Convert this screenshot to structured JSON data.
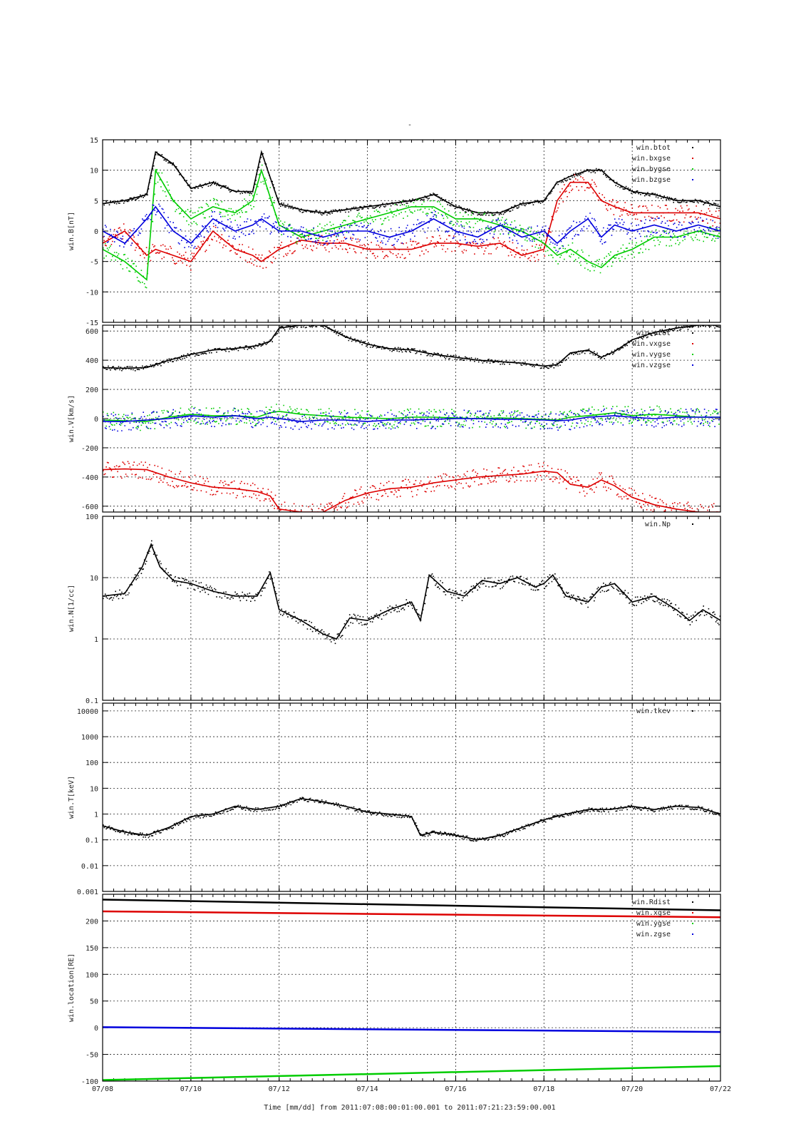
{
  "title": "-",
  "footer": {
    "xlabel": "Time [mm/dd]  from 2011:07:08:00:01:00.001  to  2011:07:21:23:59:00.001"
  },
  "xticks": [
    "07/08",
    "07/10",
    "07/12",
    "07/14",
    "07/16",
    "07/18",
    "07/20",
    "07/22"
  ],
  "colors": {
    "black": "#000000",
    "red": "#dd0000",
    "green": "#00cc00",
    "blue": "#0000dd"
  },
  "chart_data": [
    {
      "type": "scatter",
      "ylabel": "win.B[nT]",
      "ylim": [
        -15,
        15
      ],
      "yticks": [
        15,
        10,
        5,
        0,
        -5,
        -10,
        -15
      ],
      "x": [
        8.0,
        8.5,
        9.0,
        9.2,
        9.6,
        10.0,
        10.5,
        11.0,
        11.4,
        11.6,
        12.0,
        12.5,
        13.0,
        13.5,
        14.0,
        14.5,
        15.0,
        15.5,
        16.0,
        16.5,
        17.0,
        17.5,
        18.0,
        18.3,
        18.6,
        19.0,
        19.3,
        19.6,
        20.0,
        20.5,
        21.0,
        21.5,
        22.0
      ],
      "series": [
        {
          "name": "win.btot",
          "color": "black",
          "values": [
            4.5,
            5.0,
            6.0,
            13.0,
            11.0,
            7.0,
            8.0,
            6.5,
            6.5,
            13.0,
            4.5,
            3.5,
            3.0,
            3.5,
            4.0,
            4.5,
            5.0,
            6.0,
            4.0,
            3.0,
            3.0,
            4.5,
            5.0,
            8.0,
            9.0,
            10.0,
            10.0,
            8.0,
            6.5,
            6.0,
            5.0,
            5.0,
            4.0
          ]
        },
        {
          "name": "win.bxgse",
          "color": "red",
          "values": [
            -2.0,
            0.0,
            -4.0,
            -3.0,
            -4.0,
            -5.0,
            0.0,
            -3.0,
            -4.0,
            -5.0,
            -3.0,
            -1.5,
            -2.0,
            -2.0,
            -3.0,
            -3.0,
            -3.0,
            -2.0,
            -2.0,
            -2.5,
            -2.0,
            -4.0,
            -3.0,
            5.0,
            8.0,
            8.0,
            5.0,
            4.0,
            3.0,
            3.0,
            3.0,
            3.0,
            2.0
          ]
        },
        {
          "name": "win.bygse",
          "color": "green",
          "values": [
            -3.0,
            -5.0,
            -8.0,
            10.0,
            5.0,
            2.0,
            4.0,
            3.0,
            5.0,
            10.0,
            1.0,
            -1.0,
            0.0,
            1.0,
            2.0,
            3.0,
            4.0,
            4.0,
            2.0,
            2.0,
            1.0,
            0.0,
            -2.0,
            -4.0,
            -3.0,
            -5.0,
            -6.0,
            -4.0,
            -3.0,
            -1.0,
            -1.0,
            0.0,
            -1.0
          ]
        },
        {
          "name": "win.bzgse",
          "color": "blue",
          "values": [
            0.0,
            -2.0,
            2.0,
            4.0,
            0.0,
            -2.0,
            2.0,
            0.0,
            1.0,
            2.0,
            0.0,
            0.0,
            -1.0,
            0.0,
            0.0,
            -1.0,
            0.0,
            2.0,
            0.0,
            -1.0,
            1.0,
            -1.0,
            0.0,
            -2.0,
            0.0,
            2.0,
            -1.0,
            1.0,
            0.0,
            1.0,
            0.0,
            1.0,
            0.0
          ]
        }
      ],
      "legend": "top-right",
      "grid": true
    },
    {
      "type": "scatter",
      "ylabel": "win.V[km/s]",
      "ylim": [
        -640,
        640
      ],
      "yticks": [
        600,
        400,
        200,
        0,
        -200,
        -400,
        -600
      ],
      "x": [
        8.0,
        8.5,
        9.0,
        9.5,
        10.0,
        10.5,
        11.0,
        11.5,
        11.8,
        12.0,
        12.5,
        13.0,
        13.5,
        14.0,
        14.5,
        15.0,
        15.5,
        16.0,
        16.5,
        17.0,
        17.5,
        18.0,
        18.3,
        18.6,
        19.0,
        19.3,
        19.6,
        20.0,
        20.5,
        21.0,
        21.5,
        22.0
      ],
      "series": [
        {
          "name": "win.vtot",
          "color": "black",
          "values": [
            350,
            345,
            350,
            400,
            440,
            470,
            480,
            500,
            530,
            620,
            640,
            640,
            560,
            510,
            480,
            470,
            440,
            420,
            400,
            390,
            380,
            360,
            370,
            450,
            470,
            420,
            460,
            540,
            590,
            620,
            640,
            640
          ]
        },
        {
          "name": "win.vxgse",
          "color": "red",
          "values": [
            -350,
            -345,
            -350,
            -400,
            -440,
            -470,
            -480,
            -500,
            -530,
            -620,
            -640,
            -640,
            -560,
            -510,
            -480,
            -470,
            -440,
            -420,
            -400,
            -390,
            -380,
            -360,
            -370,
            -450,
            -470,
            -420,
            -460,
            -540,
            -590,
            -620,
            -640,
            -640
          ]
        },
        {
          "name": "win.vygse",
          "color": "green",
          "values": [
            -10,
            -15,
            -20,
            10,
            30,
            20,
            20,
            10,
            40,
            50,
            30,
            20,
            10,
            5,
            0,
            10,
            10,
            5,
            0,
            5,
            0,
            -5,
            -10,
            10,
            20,
            30,
            40,
            20,
            30,
            20,
            10,
            10
          ]
        },
        {
          "name": "win.vzgse",
          "color": "blue",
          "values": [
            -20,
            -20,
            -10,
            0,
            20,
            10,
            20,
            0,
            10,
            0,
            -20,
            -10,
            -10,
            -20,
            -10,
            -10,
            -5,
            0,
            0,
            -5,
            -5,
            -10,
            -15,
            -10,
            10,
            15,
            20,
            10,
            0,
            10,
            10,
            10
          ]
        }
      ],
      "legend": "top-right",
      "grid": true
    },
    {
      "type": "scatter",
      "ylabel": "win.N[1/cc]",
      "yscale": "log",
      "ylim": [
        0.1,
        100
      ],
      "yticks": [
        100,
        10,
        1,
        0.1
      ],
      "x": [
        8.0,
        8.5,
        8.9,
        9.1,
        9.3,
        9.6,
        10.0,
        10.5,
        11.0,
        11.5,
        11.8,
        12.0,
        12.5,
        13.0,
        13.3,
        13.6,
        14.0,
        14.5,
        15.0,
        15.2,
        15.4,
        15.8,
        16.2,
        16.6,
        17.0,
        17.4,
        17.8,
        18.0,
        18.2,
        18.5,
        19.0,
        19.3,
        19.6,
        20.0,
        20.5,
        21.0,
        21.3,
        21.6,
        22.0
      ],
      "series": [
        {
          "name": "win.Np",
          "color": "black",
          "values": [
            5.0,
            5.5,
            15.0,
            35.0,
            15.0,
            9.0,
            8.0,
            6.0,
            5.0,
            5.0,
            12.0,
            3.0,
            2.0,
            1.2,
            1.0,
            2.2,
            2.0,
            3.0,
            4.0,
            2.0,
            11.0,
            6.0,
            5.0,
            9.0,
            8.0,
            10.0,
            7.0,
            8.0,
            11.0,
            5.0,
            4.0,
            7.0,
            8.0,
            4.0,
            5.0,
            3.0,
            2.0,
            3.0,
            2.0
          ]
        }
      ],
      "legend": "top-right",
      "grid": true
    },
    {
      "type": "scatter",
      "ylabel": "win.T[keV]",
      "yscale": "log",
      "ylim": [
        0.001,
        20000
      ],
      "yticks": [
        10000,
        1000,
        100,
        10,
        1,
        0.1,
        0.01,
        0.001
      ],
      "x": [
        8.0,
        8.5,
        9.0,
        9.5,
        10.0,
        10.5,
        11.0,
        11.5,
        12.0,
        12.5,
        13.0,
        13.5,
        14.0,
        14.5,
        15.0,
        15.2,
        15.5,
        16.0,
        16.5,
        17.0,
        17.5,
        18.0,
        18.5,
        19.0,
        19.5,
        20.0,
        20.5,
        21.0,
        21.5,
        22.0
      ],
      "series": [
        {
          "name": "win.tkev",
          "color": "black",
          "values": [
            0.35,
            0.2,
            0.15,
            0.3,
            0.8,
            1.0,
            2.0,
            1.5,
            2.0,
            4.0,
            3.0,
            2.0,
            1.2,
            1.0,
            0.8,
            0.15,
            0.2,
            0.15,
            0.1,
            0.15,
            0.3,
            0.6,
            1.0,
            1.5,
            1.5,
            2.0,
            1.5,
            2.0,
            1.8,
            1.0
          ]
        }
      ],
      "legend": "top-right",
      "grid": true
    },
    {
      "type": "line",
      "ylabel": "win.location[RE]",
      "ylim": [
        -100,
        250
      ],
      "yticks": [
        200,
        150,
        100,
        50,
        0,
        -50,
        -100
      ],
      "x": [
        8.0,
        22.0
      ],
      "series": [
        {
          "name": "win.Rdist",
          "color": "black",
          "values": [
            240,
            220
          ]
        },
        {
          "name": "win.xgse",
          "color": "red",
          "values": [
            218,
            207
          ]
        },
        {
          "name": "win.ygse",
          "color": "green",
          "values": [
            -98,
            -72
          ]
        },
        {
          "name": "win.zgse",
          "color": "blue",
          "values": [
            1,
            -8
          ]
        }
      ],
      "legend": "top-right",
      "grid": true
    }
  ]
}
